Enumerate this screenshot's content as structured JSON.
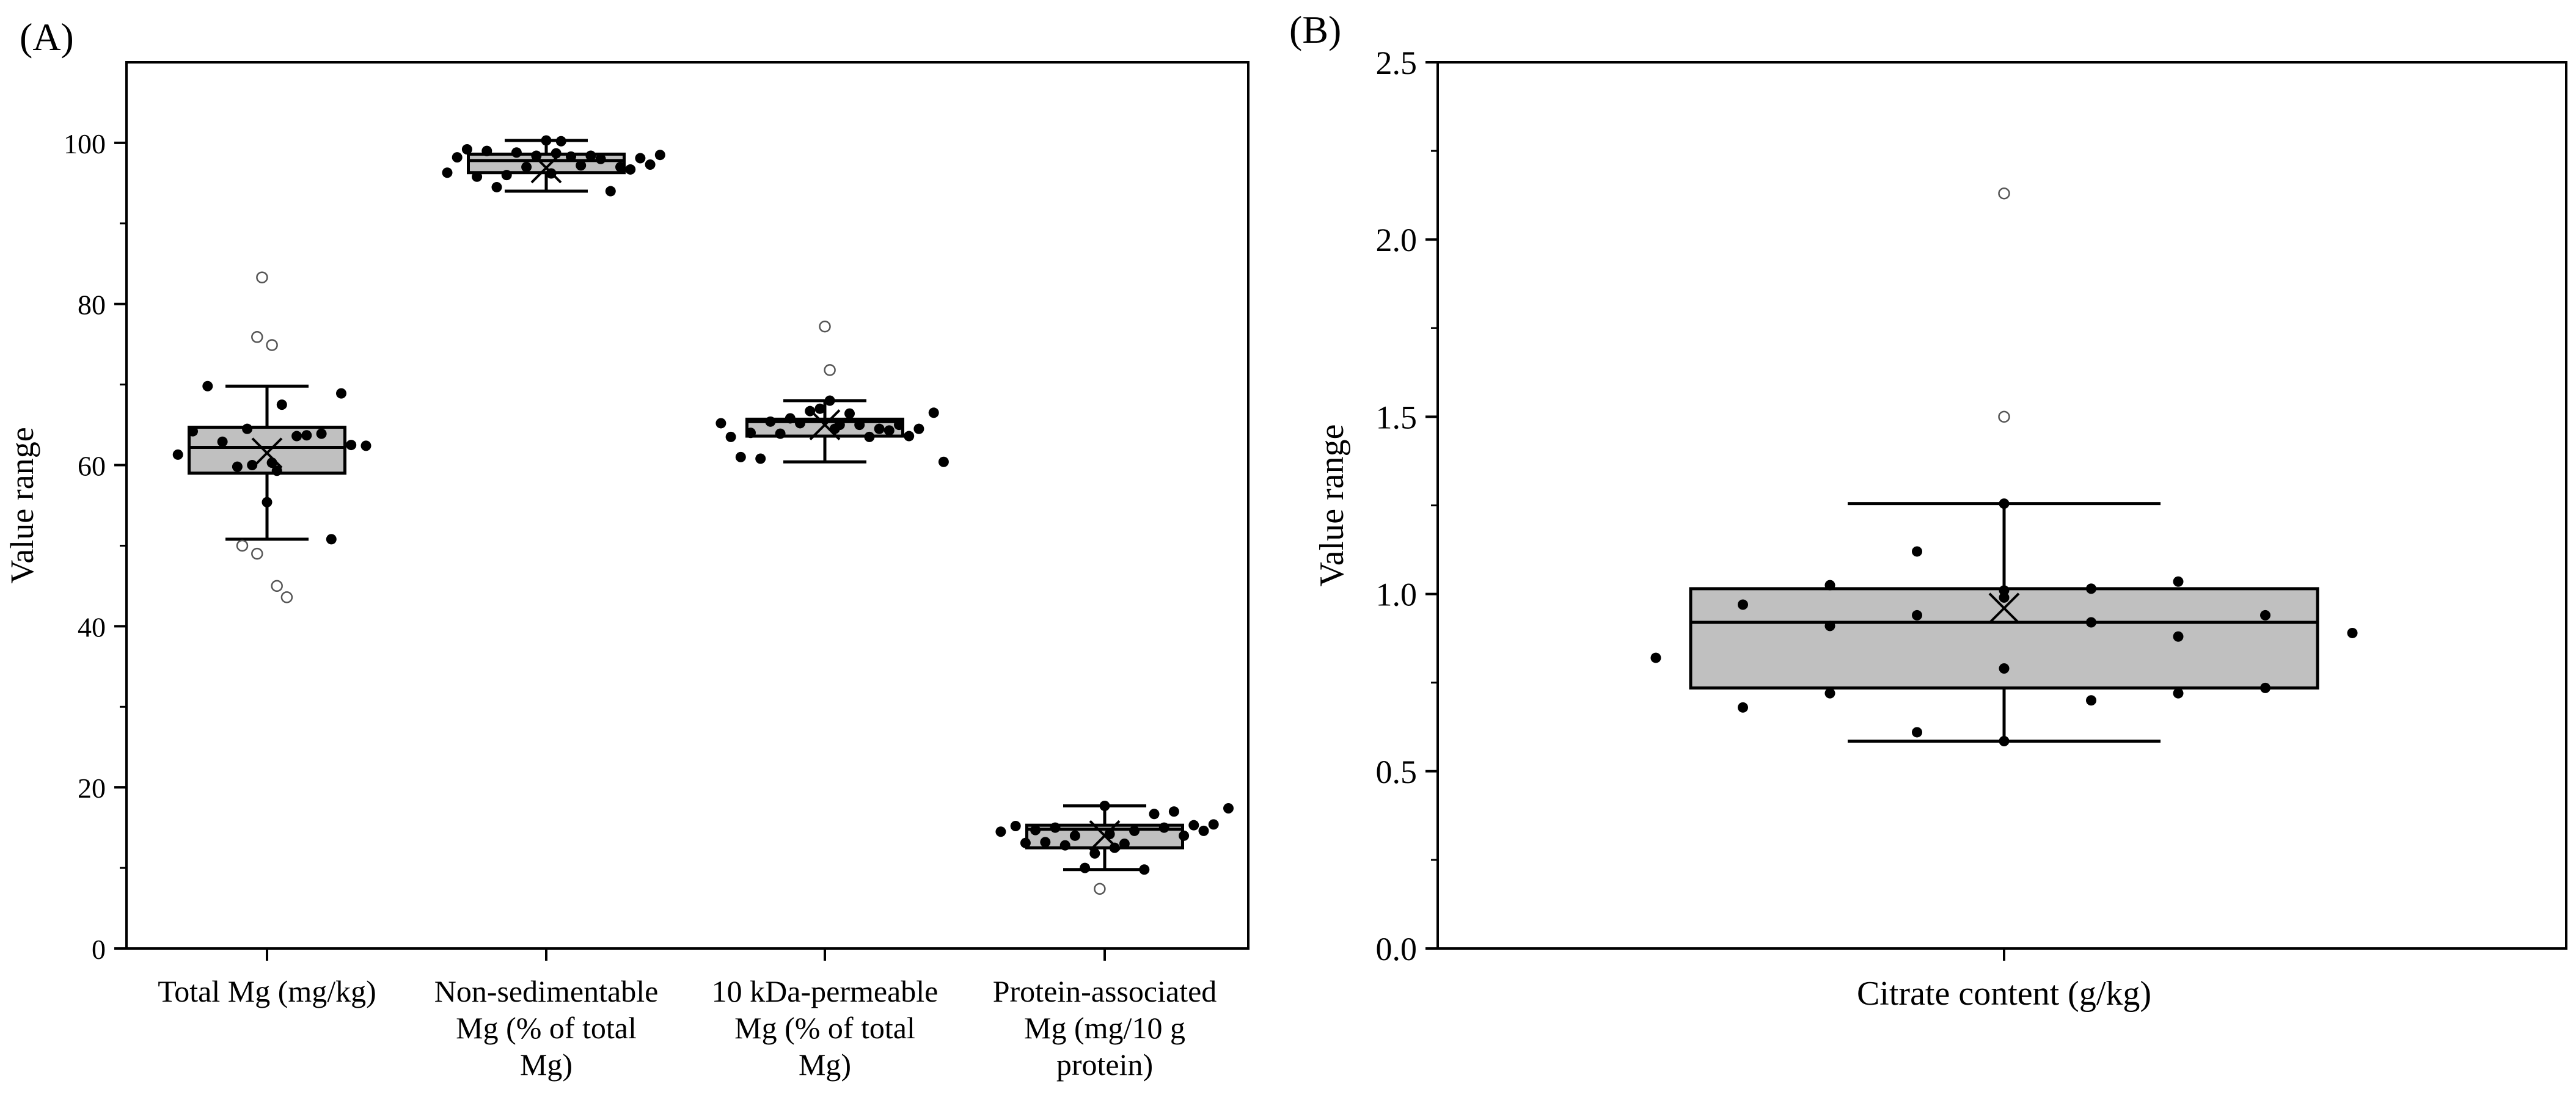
{
  "chart_data": [
    {
      "panel_label": "(A)",
      "type": "box",
      "ylabel": "Value range",
      "ylim": [
        0,
        110
      ],
      "yticks": [
        0,
        20,
        40,
        60,
        80,
        100
      ],
      "ytick_labels": [
        "0",
        "20",
        "40",
        "60",
        "80",
        "100"
      ],
      "minor_ticks": true,
      "grid": false,
      "categories": [
        [
          "Total Mg (mg/kg)"
        ],
        [
          "Non-sedimentable",
          "Mg (% of total",
          "Mg)"
        ],
        [
          "10 kDa-permeable",
          "Mg (% of total",
          "Mg)"
        ],
        [
          "Protein-associated",
          "Mg (mg/10 g",
          "protein)"
        ]
      ],
      "series": [
        {
          "q1": 59.0,
          "median": 62.2,
          "q3": 64.7,
          "mean": 61.5,
          "whisker_low": 50.8,
          "whisker_high": 69.8,
          "points": [
            [
              -0.9,
              61.3
            ],
            [
              -0.75,
              64.2
            ],
            [
              -0.6,
              69.8
            ],
            [
              -0.45,
              62.9
            ],
            [
              -0.3,
              59.8
            ],
            [
              -0.2,
              64.5
            ],
            [
              -0.15,
              60.0
            ],
            [
              0.0,
              55.4
            ],
            [
              0.05,
              60.3
            ],
            [
              0.1,
              59.3
            ],
            [
              0.15,
              67.5
            ],
            [
              0.3,
              63.6
            ],
            [
              0.4,
              63.7
            ],
            [
              0.55,
              63.9
            ],
            [
              0.65,
              50.8
            ],
            [
              0.75,
              68.9
            ],
            [
              0.85,
              62.5
            ],
            [
              1.0,
              62.4
            ]
          ],
          "outliers": [
            [
              -0.05,
              83.3
            ],
            [
              -0.1,
              75.9
            ],
            [
              0.05,
              74.9
            ],
            [
              -0.25,
              50.0
            ],
            [
              -0.1,
              49.0
            ],
            [
              0.1,
              45.0
            ],
            [
              0.2,
              43.6
            ]
          ]
        },
        {
          "q1": 96.3,
          "median": 97.8,
          "q3": 98.6,
          "mean": 96.9,
          "whisker_low": 94.0,
          "whisker_high": 100.3,
          "points": [
            [
              -1.0,
              96.3
            ],
            [
              -0.9,
              98.2
            ],
            [
              -0.8,
              99.2
            ],
            [
              -0.7,
              95.8
            ],
            [
              -0.6,
              99.0
            ],
            [
              -0.5,
              94.5
            ],
            [
              -0.4,
              96.0
            ],
            [
              -0.3,
              98.8
            ],
            [
              -0.2,
              97.0
            ],
            [
              -0.1,
              98.4
            ],
            [
              0.0,
              100.3
            ],
            [
              0.05,
              96.2
            ],
            [
              0.1,
              98.7
            ],
            [
              0.15,
              100.2
            ],
            [
              0.25,
              98.3
            ],
            [
              0.35,
              97.2
            ],
            [
              0.45,
              98.4
            ],
            [
              0.55,
              98.0
            ],
            [
              0.65,
              94.0
            ],
            [
              0.75,
              97.0
            ],
            [
              0.85,
              96.7
            ],
            [
              0.95,
              98.1
            ],
            [
              1.05,
              97.3
            ],
            [
              1.15,
              98.5
            ]
          ],
          "outliers": []
        },
        {
          "q1": 63.6,
          "median": 65.4,
          "q3": 65.7,
          "mean": 65.0,
          "whisker_low": 60.4,
          "whisker_high": 68.0,
          "points": [
            [
              -1.05,
              65.2
            ],
            [
              -0.95,
              63.5
            ],
            [
              -0.85,
              61.0
            ],
            [
              -0.75,
              64.0
            ],
            [
              -0.65,
              60.8
            ],
            [
              -0.55,
              65.4
            ],
            [
              -0.45,
              63.9
            ],
            [
              -0.35,
              65.8
            ],
            [
              -0.25,
              65.2
            ],
            [
              -0.15,
              66.7
            ],
            [
              -0.05,
              67.0
            ],
            [
              0.05,
              68.0
            ],
            [
              0.1,
              64.5
            ],
            [
              0.15,
              65.0
            ],
            [
              0.25,
              66.4
            ],
            [
              0.35,
              65.0
            ],
            [
              0.45,
              63.5
            ],
            [
              0.55,
              64.5
            ],
            [
              0.65,
              64.3
            ],
            [
              0.75,
              65.0
            ],
            [
              0.85,
              63.6
            ],
            [
              0.95,
              64.5
            ],
            [
              1.1,
              66.5
            ],
            [
              1.2,
              60.4
            ]
          ],
          "outliers": [
            [
              0.0,
              77.2
            ],
            [
              0.05,
              71.8
            ]
          ]
        },
        {
          "q1": 12.5,
          "median": 14.8,
          "q3": 15.3,
          "mean": 14.0,
          "whisker_low": 9.8,
          "whisker_high": 17.7,
          "points": [
            [
              -1.05,
              14.5
            ],
            [
              -0.9,
              15.2
            ],
            [
              -0.8,
              13.1
            ],
            [
              -0.7,
              14.7
            ],
            [
              -0.6,
              13.2
            ],
            [
              -0.5,
              15.0
            ],
            [
              -0.4,
              12.8
            ],
            [
              -0.3,
              14.0
            ],
            [
              -0.2,
              10.0
            ],
            [
              -0.1,
              11.8
            ],
            [
              0.0,
              17.7
            ],
            [
              0.05,
              14.2
            ],
            [
              0.1,
              12.5
            ],
            [
              0.2,
              13.0
            ],
            [
              0.3,
              14.6
            ],
            [
              0.4,
              9.8
            ],
            [
              0.5,
              16.7
            ],
            [
              0.6,
              15.0
            ],
            [
              0.7,
              17.0
            ],
            [
              0.8,
              14.0
            ],
            [
              0.9,
              15.3
            ],
            [
              1.0,
              14.6
            ],
            [
              1.1,
              15.4
            ],
            [
              1.25,
              17.4
            ]
          ],
          "outliers": [
            [
              -0.05,
              7.4
            ]
          ]
        }
      ]
    },
    {
      "panel_label": "(B)",
      "type": "box",
      "xlabel": "Citrate content (g/kg)",
      "ylabel": "Value range",
      "ylim": [
        0,
        2.5
      ],
      "yticks": [
        0,
        0.5,
        1.0,
        1.5,
        2.0,
        2.5
      ],
      "ytick_labels": [
        "0.0",
        "0.5",
        "1.0",
        "1.5",
        "2.0",
        "2.5"
      ],
      "minor_ticks": true,
      "grid": false,
      "series": [
        {
          "q1": 0.735,
          "median": 0.92,
          "q3": 1.015,
          "mean": 0.96,
          "whisker_low": 0.585,
          "whisker_high": 1.255,
          "points": [
            [
              -1.0,
              0.82
            ],
            [
              -0.75,
              0.97
            ],
            [
              -0.75,
              0.68
            ],
            [
              -0.5,
              1.025
            ],
            [
              -0.5,
              0.91
            ],
            [
              -0.5,
              0.72
            ],
            [
              -0.25,
              1.12
            ],
            [
              -0.25,
              0.94
            ],
            [
              -0.25,
              0.61
            ],
            [
              0.0,
              1.255
            ],
            [
              0.0,
              1.01
            ],
            [
              0.0,
              0.99
            ],
            [
              0.0,
              0.79
            ],
            [
              0.0,
              0.585
            ],
            [
              0.25,
              1.015
            ],
            [
              0.25,
              0.92
            ],
            [
              0.25,
              0.7
            ],
            [
              0.5,
              1.035
            ],
            [
              0.5,
              0.88
            ],
            [
              0.5,
              0.72
            ],
            [
              0.75,
              0.94
            ],
            [
              0.75,
              0.735
            ],
            [
              1.0,
              0.89
            ]
          ],
          "outliers": [
            [
              0.0,
              2.13
            ],
            [
              0.0,
              1.5
            ]
          ]
        }
      ]
    }
  ]
}
